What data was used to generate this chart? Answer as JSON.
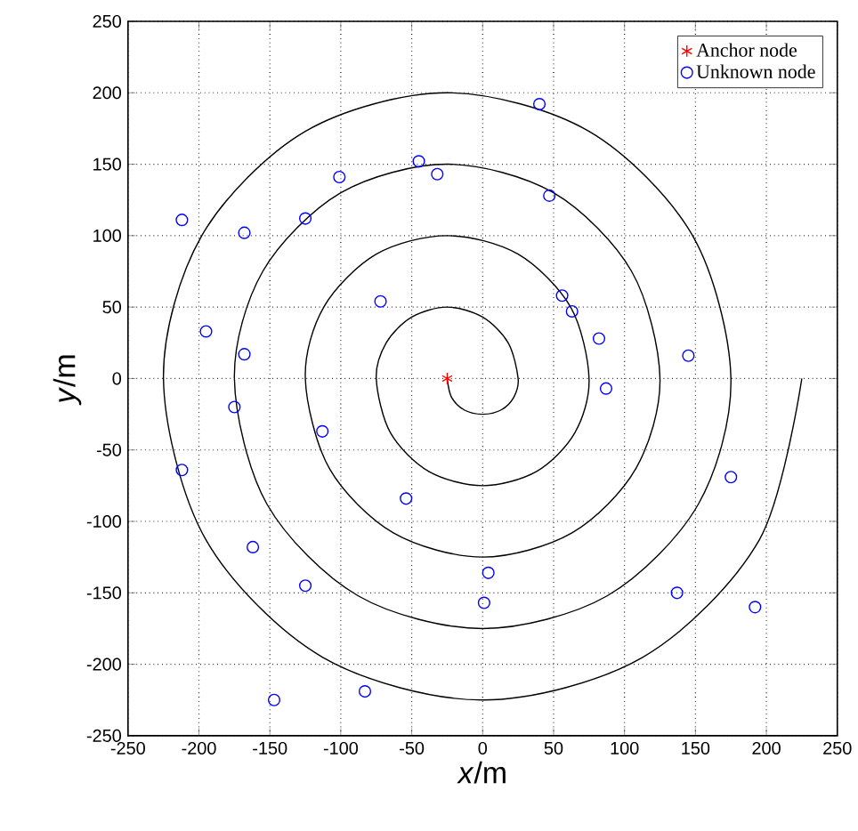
{
  "chart_data": {
    "type": "scatter",
    "xlabel": "*x*/m",
    "ylabel": "*y*/m",
    "xlim": [
      -250,
      250
    ],
    "ylim": [
      -250,
      250
    ],
    "xticks": [
      -250,
      -200,
      -150,
      -100,
      -50,
      0,
      50,
      100,
      150,
      200,
      250
    ],
    "yticks": [
      -250,
      -200,
      -150,
      -100,
      -50,
      0,
      50,
      100,
      150,
      200,
      250
    ],
    "grid": true,
    "legend": "top right",
    "series": [
      {
        "type": "line",
        "color": "#000000",
        "marker": "none",
        "x": [
          -25,
          -22,
          -13,
          0,
          13,
          22,
          25,
          18,
          0,
          -25,
          -50,
          -68,
          -75,
          -65,
          -38,
          0,
          38,
          65,
          75,
          62,
          25,
          -25,
          -75,
          -112,
          -125,
          -108,
          -63,
          0,
          63,
          108,
          125,
          105,
          50,
          -25,
          -100,
          -155,
          -175,
          -152,
          -88,
          0,
          88,
          152,
          175,
          148,
          75,
          -25,
          -125,
          -198,
          -225,
          -195,
          -113,
          0,
          113,
          195,
          225
        ],
        "values": [
          0,
          -13,
          -22,
          -25,
          -22,
          -13,
          0,
          25,
          43,
          50,
          43,
          25,
          0,
          -38,
          -65,
          -75,
          -65,
          -38,
          0,
          50,
          87,
          100,
          87,
          50,
          0,
          -63,
          -108,
          -125,
          -108,
          -63,
          0,
          75,
          130,
          150,
          130,
          75,
          0,
          -88,
          -152,
          -175,
          -152,
          -88,
          0,
          100,
          173,
          200,
          173,
          100,
          0,
          -113,
          -195,
          -225,
          -195,
          -113,
          0
        ]
      },
      {
        "name": "Anchor node",
        "color": "#ff0000",
        "marker": "cross",
        "x": [
          -25
        ],
        "values": [
          0
        ]
      },
      {
        "name": "Unknown node",
        "color": "#0000ff",
        "marker": "circle",
        "x": [
          -212,
          -195,
          -168,
          -168,
          -175,
          -212,
          -125,
          -101,
          -72,
          -45,
          -32,
          -113,
          -54,
          -162,
          -125,
          -147,
          -83,
          40,
          47,
          56,
          63,
          82,
          87,
          145,
          175,
          137,
          192,
          4,
          1
        ],
        "values": [
          111,
          33,
          102,
          17,
          -20,
          -64,
          112,
          141,
          54,
          152,
          143,
          -37,
          -84,
          -118,
          -145,
          -225,
          -219,
          192,
          128,
          58,
          47,
          28,
          -7,
          16,
          -69,
          -150,
          -160,
          -136,
          -157
        ]
      }
    ]
  }
}
